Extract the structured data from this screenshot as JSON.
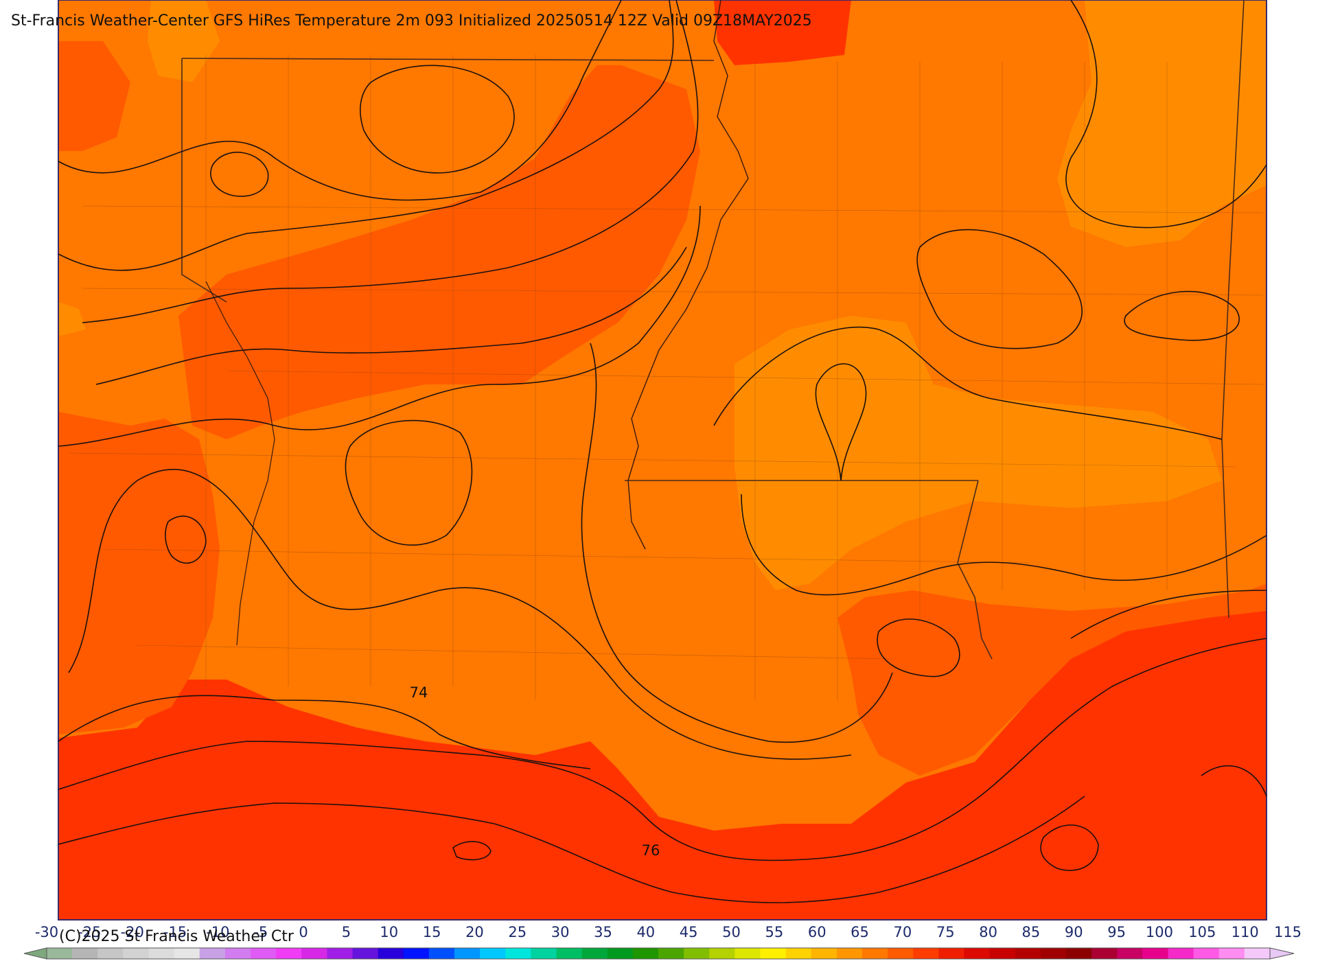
{
  "title": "St-Francis Weather-Center GFS HiRes Temperature 2m  093 Initialized 20250514 12Z Valid 09Z18MAY2025",
  "contour_labels": [
    {
      "text": "74"
    },
    {
      "text": "76"
    }
  ],
  "copyright": "(C)2025 St Francis Weather Ctr",
  "colorbar": {
    "tick_labels": [
      "-30",
      "-25",
      "-20",
      "-15",
      "-10",
      "-5",
      "0",
      "5",
      "10",
      "15",
      "20",
      "25",
      "30",
      "35",
      "40",
      "45",
      "50",
      "55",
      "60",
      "65",
      "70",
      "75",
      "80",
      "85",
      "90",
      "95",
      "100",
      "105",
      "110",
      "115"
    ],
    "colors": [
      "#9ab89a",
      "#b5b5b5",
      "#c6c6c6",
      "#d2d2d2",
      "#dcdcdc",
      "#e6e6e6",
      "#c8a0e6",
      "#d27cf0",
      "#e05af5",
      "#f03cf5",
      "#d628e6",
      "#a01ee6",
      "#6414dc",
      "#2800dc",
      "#0014ff",
      "#0050ff",
      "#0096ff",
      "#00c8ff",
      "#00e6dc",
      "#00d2a0",
      "#00be64",
      "#00a83c",
      "#009a1e",
      "#1e9600",
      "#4ba500",
      "#82be00",
      "#b4d200",
      "#dce600",
      "#fff000",
      "#ffd200",
      "#ffb400",
      "#ff9600",
      "#ff7800",
      "#ff5a00",
      "#ff3c00",
      "#f01e00",
      "#dc0a00",
      "#c80000",
      "#b40000",
      "#a00000",
      "#8c0000",
      "#aa0032",
      "#c80064",
      "#e6008c",
      "#f528c8",
      "#ff5ae6",
      "#ff8cf0",
      "#f5c8fa"
    ],
    "end_left_color": "#7fa87f",
    "end_right_color": "#e8c8f4"
  },
  "temperature_colors": {
    "t60_65": "#ff8c00",
    "t65_70": "#ff7800",
    "t70_75": "#ff5a00",
    "t75_80": "#ff3300"
  }
}
